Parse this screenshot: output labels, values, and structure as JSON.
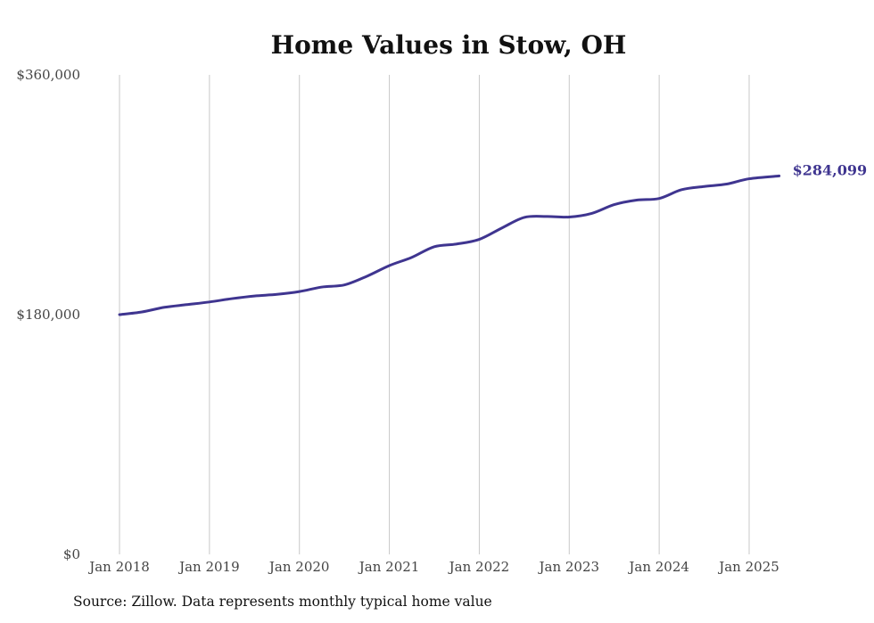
{
  "chart_data": {
    "type": "line",
    "title": "Home Values in Stow, OH",
    "xlabel": "",
    "ylabel": "",
    "ylim": [
      0,
      360000
    ],
    "yticks": [
      {
        "value": 0,
        "label": "$0"
      },
      {
        "value": 180000,
        "label": "$180,000"
      },
      {
        "value": 360000,
        "label": "$360,000"
      }
    ],
    "xticks": [
      {
        "value": 2018,
        "label": "Jan 2018"
      },
      {
        "value": 2019,
        "label": "Jan 2019"
      },
      {
        "value": 2020,
        "label": "Jan 2020"
      },
      {
        "value": 2021,
        "label": "Jan 2021"
      },
      {
        "value": 2022,
        "label": "Jan 2022"
      },
      {
        "value": 2023,
        "label": "Jan 2023"
      },
      {
        "value": 2024,
        "label": "Jan 2024"
      },
      {
        "value": 2025,
        "label": "Jan 2025"
      }
    ],
    "grid": "vertical",
    "series": [
      {
        "color": "#3f3590",
        "end_label": "$284,099",
        "points": [
          {
            "x": "2018-01",
            "y": 180000
          },
          {
            "x": "2018-04",
            "y": 182000
          },
          {
            "x": "2018-07",
            "y": 185500
          },
          {
            "x": "2018-10",
            "y": 187500
          },
          {
            "x": "2019-01",
            "y": 189500
          },
          {
            "x": "2019-04",
            "y": 192000
          },
          {
            "x": "2019-07",
            "y": 194000
          },
          {
            "x": "2019-10",
            "y": 195200
          },
          {
            "x": "2020-01",
            "y": 197300
          },
          {
            "x": "2020-04",
            "y": 200700
          },
          {
            "x": "2020-07",
            "y": 202300
          },
          {
            "x": "2020-10",
            "y": 208800
          },
          {
            "x": "2021-01",
            "y": 216800
          },
          {
            "x": "2021-04",
            "y": 223000
          },
          {
            "x": "2021-07",
            "y": 231000
          },
          {
            "x": "2021-10",
            "y": 233000
          },
          {
            "x": "2022-01",
            "y": 236500
          },
          {
            "x": "2022-04",
            "y": 245000
          },
          {
            "x": "2022-07",
            "y": 253000
          },
          {
            "x": "2022-10",
            "y": 253700
          },
          {
            "x": "2023-01",
            "y": 253300
          },
          {
            "x": "2023-04",
            "y": 256000
          },
          {
            "x": "2023-07",
            "y": 262600
          },
          {
            "x": "2023-10",
            "y": 266000
          },
          {
            "x": "2024-01",
            "y": 267200
          },
          {
            "x": "2024-04",
            "y": 273800
          },
          {
            "x": "2024-07",
            "y": 276200
          },
          {
            "x": "2024-10",
            "y": 278000
          },
          {
            "x": "2025-01",
            "y": 282000
          },
          {
            "x": "2025-05",
            "y": 284099
          }
        ]
      }
    ]
  },
  "footer": {
    "source": "Source: Zillow. Data represents monthly typical home value"
  }
}
